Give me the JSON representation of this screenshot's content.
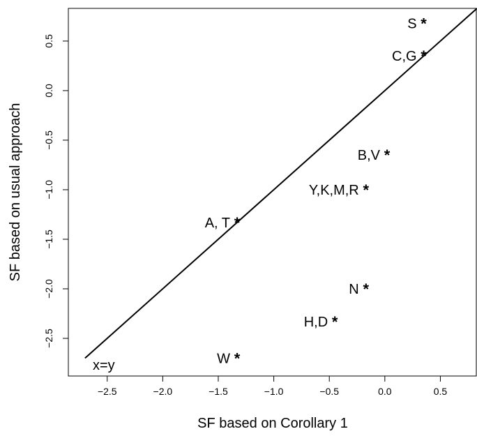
{
  "chart_data": {
    "type": "scatter",
    "xlabel": "SF based on Corollary 1",
    "ylabel": "SF based on usual approach",
    "xlim": [
      -2.85,
      0.83
    ],
    "ylim": [
      -2.88,
      0.83
    ],
    "xticks": [
      -2.5,
      -2.0,
      -1.5,
      -1.0,
      -0.5,
      0.0,
      0.5
    ],
    "xtick_labels": [
      "−2.5",
      "−2.0",
      "−1.5",
      "−1.0",
      "−0.5",
      "0.0",
      "0.5"
    ],
    "yticks": [
      -2.5,
      -2.0,
      -1.5,
      -1.0,
      -0.5,
      0.0,
      0.5
    ],
    "ytick_labels": [
      "−2.5",
      "−2.0",
      "−1.5",
      "−1.0",
      "−0.5",
      "0.0",
      "0.5"
    ],
    "marker": "*",
    "grid": false,
    "points": [
      {
        "label": "S",
        "x": 0.35,
        "y": 0.68
      },
      {
        "label": "C,G",
        "x": 0.35,
        "y": 0.35
      },
      {
        "label": "B,V",
        "x": 0.02,
        "y": -0.65
      },
      {
        "label": "Y,K,M,R",
        "x": -0.17,
        "y": -1.0
      },
      {
        "label": "A, T",
        "x": -1.33,
        "y": -1.33
      },
      {
        "label": "N",
        "x": -0.17,
        "y": -2.0
      },
      {
        "label": "H,D",
        "x": -0.45,
        "y": -2.33
      },
      {
        "label": "W",
        "x": -1.33,
        "y": -2.7
      }
    ],
    "reference_line": {
      "label": "x=y",
      "from": [
        -2.7,
        -2.7
      ],
      "to": [
        0.83,
        0.83
      ]
    }
  }
}
